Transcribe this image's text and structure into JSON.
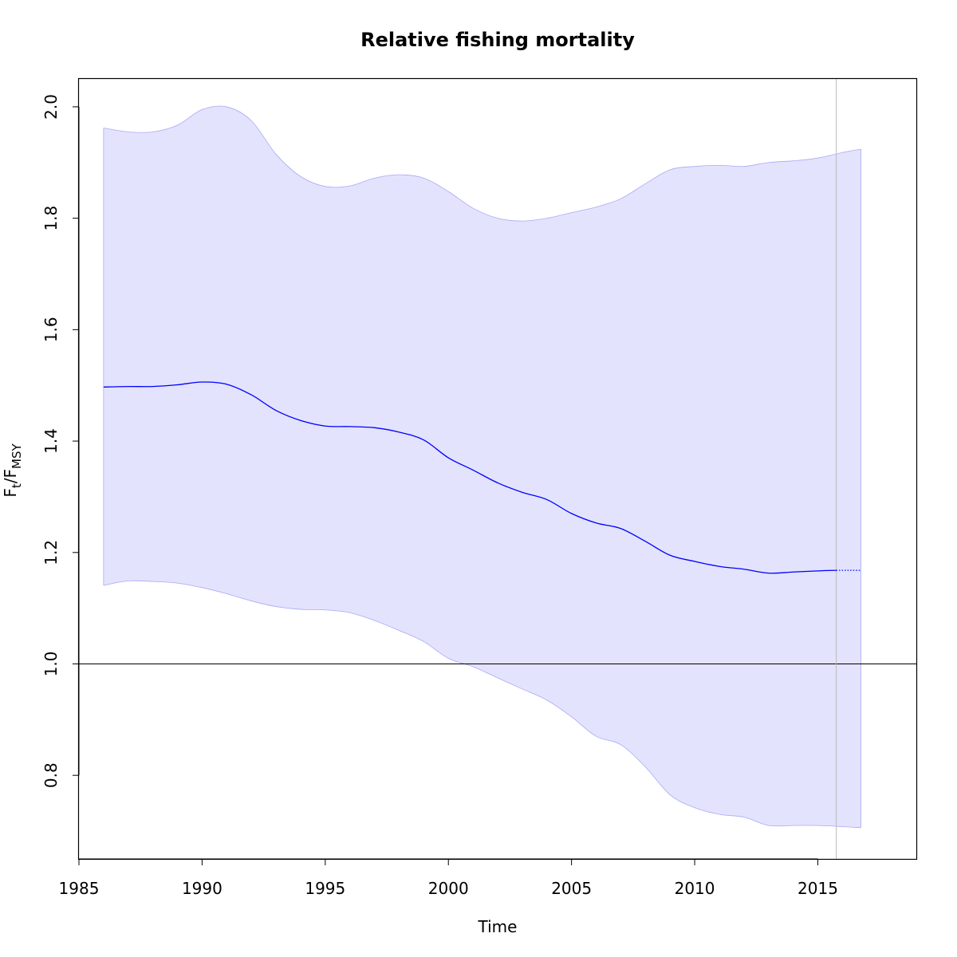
{
  "chart_data": {
    "type": "line",
    "title": "Relative fishing mortality",
    "xlabel": "Time",
    "ylabel": {
      "main": "F",
      "sub1": "t",
      "sep": "/F",
      "sub2": "MSY"
    },
    "xlim": [
      1985,
      2019
    ],
    "ylim": [
      0.65,
      2.05
    ],
    "xticks": [
      1985,
      1990,
      1995,
      2000,
      2005,
      2010,
      2015
    ],
    "yticks": [
      0.8,
      1.0,
      1.2,
      1.4,
      1.6,
      1.8,
      2.0
    ],
    "reference_line_y": 1.0,
    "vertical_line_x": 2015.75,
    "colors": {
      "line": "#0000ff",
      "band_fill": "#e3e3fd",
      "band_edge": "#a9a9f5",
      "ref": "#000000",
      "vline": "#bbbbbb"
    },
    "series": [
      {
        "role": "estimate",
        "style": "solid",
        "x": [
          1986,
          1987,
          1988,
          1989,
          1990,
          1991,
          1992,
          1993,
          1994,
          1995,
          1996,
          1997,
          1998,
          1999,
          2000,
          2001,
          2002,
          2003,
          2004,
          2005,
          2006,
          2007,
          2008,
          2009,
          2010,
          2011,
          2012,
          2013,
          2014,
          2015,
          2015.75
        ],
        "y": [
          1.497,
          1.498,
          1.498,
          1.501,
          1.506,
          1.502,
          1.483,
          1.455,
          1.437,
          1.427,
          1.426,
          1.424,
          1.416,
          1.402,
          1.37,
          1.348,
          1.325,
          1.308,
          1.295,
          1.27,
          1.253,
          1.243,
          1.22,
          1.195,
          1.184,
          1.175,
          1.17,
          1.163,
          1.165,
          1.167,
          1.168
        ]
      },
      {
        "role": "prediction",
        "style": "dotted",
        "x": [
          2015.75,
          2016.75
        ],
        "y": [
          1.168,
          1.168
        ]
      }
    ],
    "band": {
      "x": [
        1986,
        1987,
        1988,
        1989,
        1990,
        1991,
        1992,
        1993,
        1994,
        1995,
        1996,
        1997,
        1998,
        1999,
        2000,
        2001,
        2002,
        2003,
        2004,
        2005,
        2006,
        2007,
        2008,
        2009,
        2010,
        2011,
        2012,
        2013,
        2014,
        2015,
        2016,
        2016.75
      ],
      "upper": [
        1.962,
        1.955,
        1.955,
        1.967,
        1.995,
        2.0,
        1.975,
        1.915,
        1.875,
        1.857,
        1.858,
        1.872,
        1.878,
        1.872,
        1.848,
        1.818,
        1.8,
        1.795,
        1.8,
        1.81,
        1.82,
        1.835,
        1.862,
        1.887,
        1.893,
        1.895,
        1.893,
        1.9,
        1.903,
        1.908,
        1.918,
        1.924
      ],
      "lower": [
        1.141,
        1.149,
        1.148,
        1.145,
        1.137,
        1.126,
        1.113,
        1.103,
        1.098,
        1.097,
        1.092,
        1.078,
        1.06,
        1.04,
        1.01,
        0.995,
        0.975,
        0.955,
        0.935,
        0.905,
        0.87,
        0.855,
        0.815,
        0.765,
        0.742,
        0.73,
        0.725,
        0.71,
        0.71,
        0.71,
        0.708,
        0.706
      ]
    }
  }
}
